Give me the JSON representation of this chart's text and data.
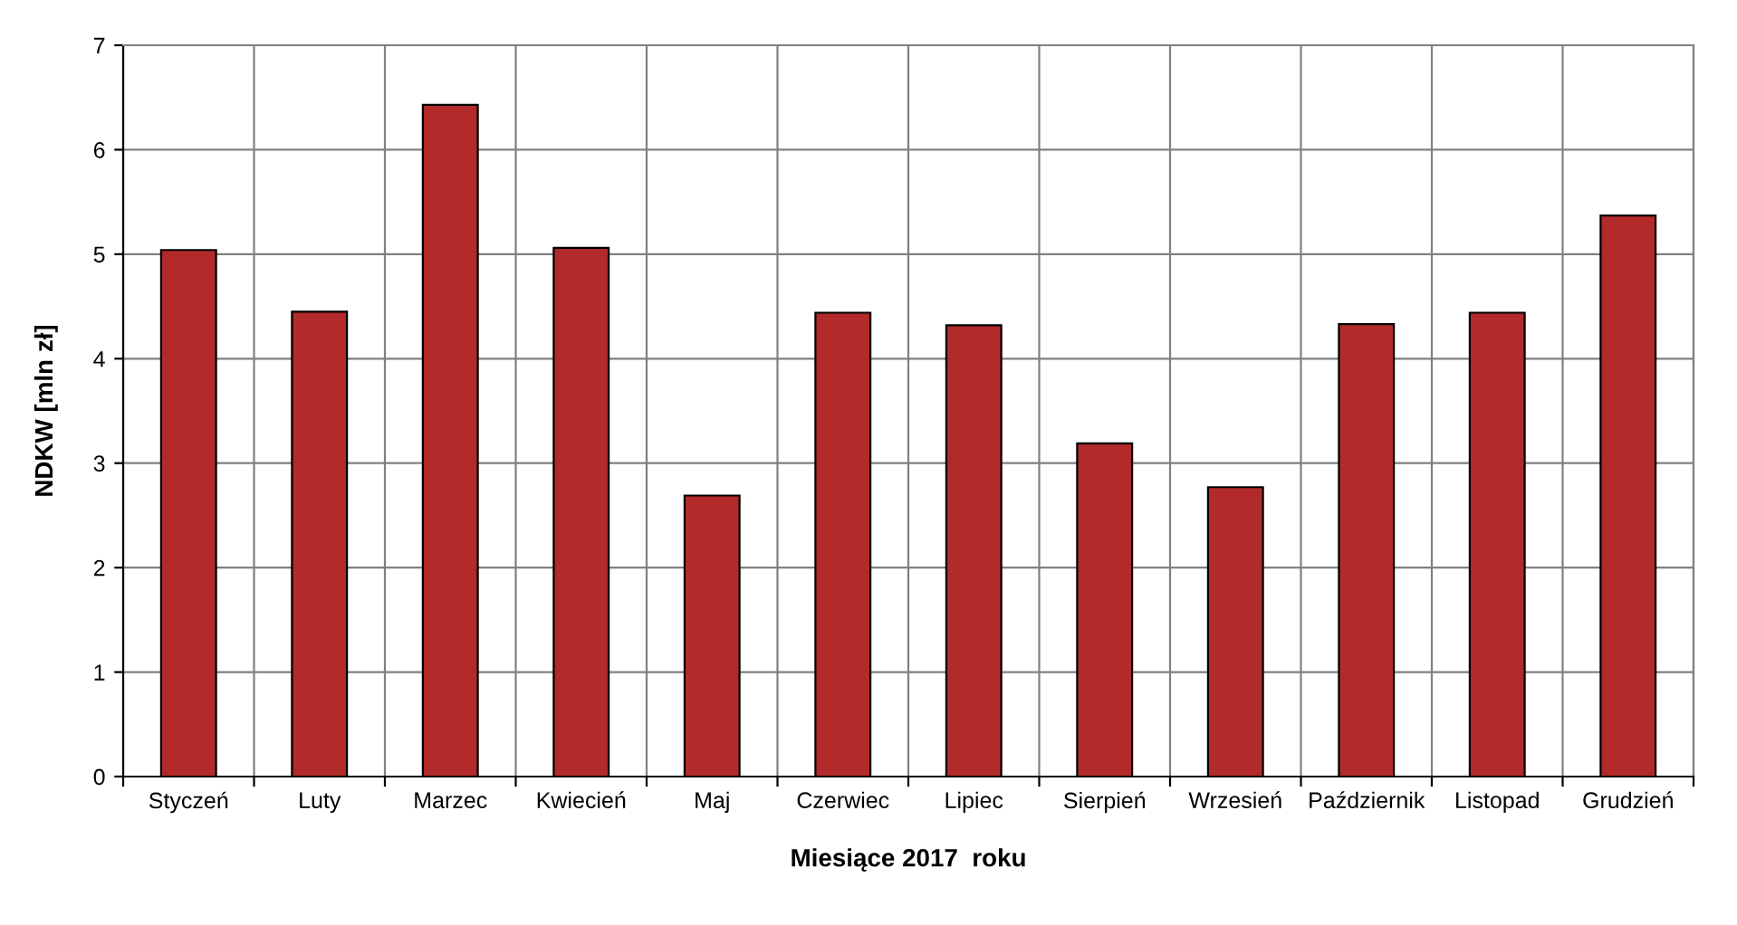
{
  "chart_data": {
    "type": "bar",
    "categories": [
      "Styczeń",
      "Luty",
      "Marzec",
      "Kwiecień",
      "Maj",
      "Czerwiec",
      "Lipiec",
      "Sierpień",
      "Wrzesień",
      "Październik",
      "Listopad",
      "Grudzień"
    ],
    "values": [
      5.04,
      4.45,
      6.43,
      5.06,
      2.69,
      4.44,
      4.32,
      3.19,
      2.77,
      4.33,
      4.44,
      5.37
    ],
    "color": "#b22a2a",
    "xlabel": "Miesiące 2017  roku",
    "ylabel": "NDKW [mln zł]",
    "ylim": [
      0,
      7
    ],
    "yticks": [
      0,
      1,
      2,
      3,
      4,
      5,
      6,
      7
    ],
    "grid": true
  }
}
